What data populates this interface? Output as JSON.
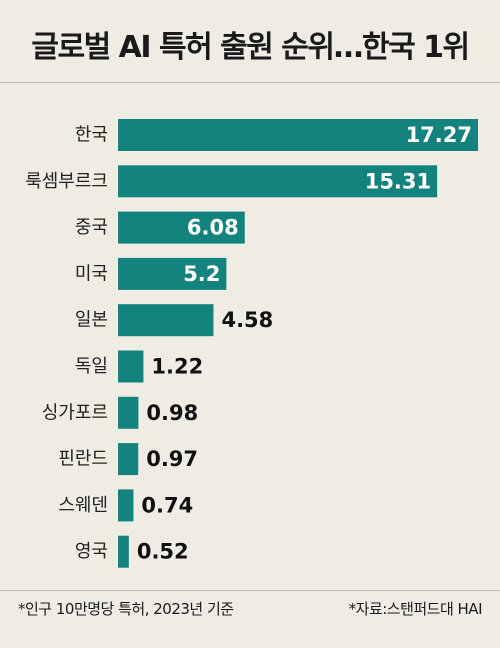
{
  "title": "글로벌 AI 특허 출원 순위…한국 1위",
  "footnote_left": "*인구 10만명당 특허, 2023년 기준",
  "footnote_right": "*자료:스탠퍼드대 HAI",
  "colors": {
    "bar": "#15837d",
    "background": "#efece4",
    "rule": "#bdb8ad"
  },
  "chart_data": {
    "type": "bar",
    "orientation": "horizontal",
    "title": "글로벌 AI 특허 출원 순위…한국 1위",
    "categories": [
      "한국",
      "룩셈부르크",
      "중국",
      "미국",
      "일본",
      "독일",
      "싱가포르",
      "핀란드",
      "스웨덴",
      "영국"
    ],
    "values": [
      17.27,
      15.31,
      6.08,
      5.2,
      4.58,
      1.22,
      0.98,
      0.97,
      0.74,
      0.52
    ],
    "value_labels": [
      "17.27",
      "15.31",
      "6.08",
      "5.2",
      "4.58",
      "1.22",
      "0.98",
      "0.97",
      "0.74",
      "0.52"
    ],
    "xlim": [
      0,
      17.27
    ],
    "grid": false,
    "legend": false
  }
}
